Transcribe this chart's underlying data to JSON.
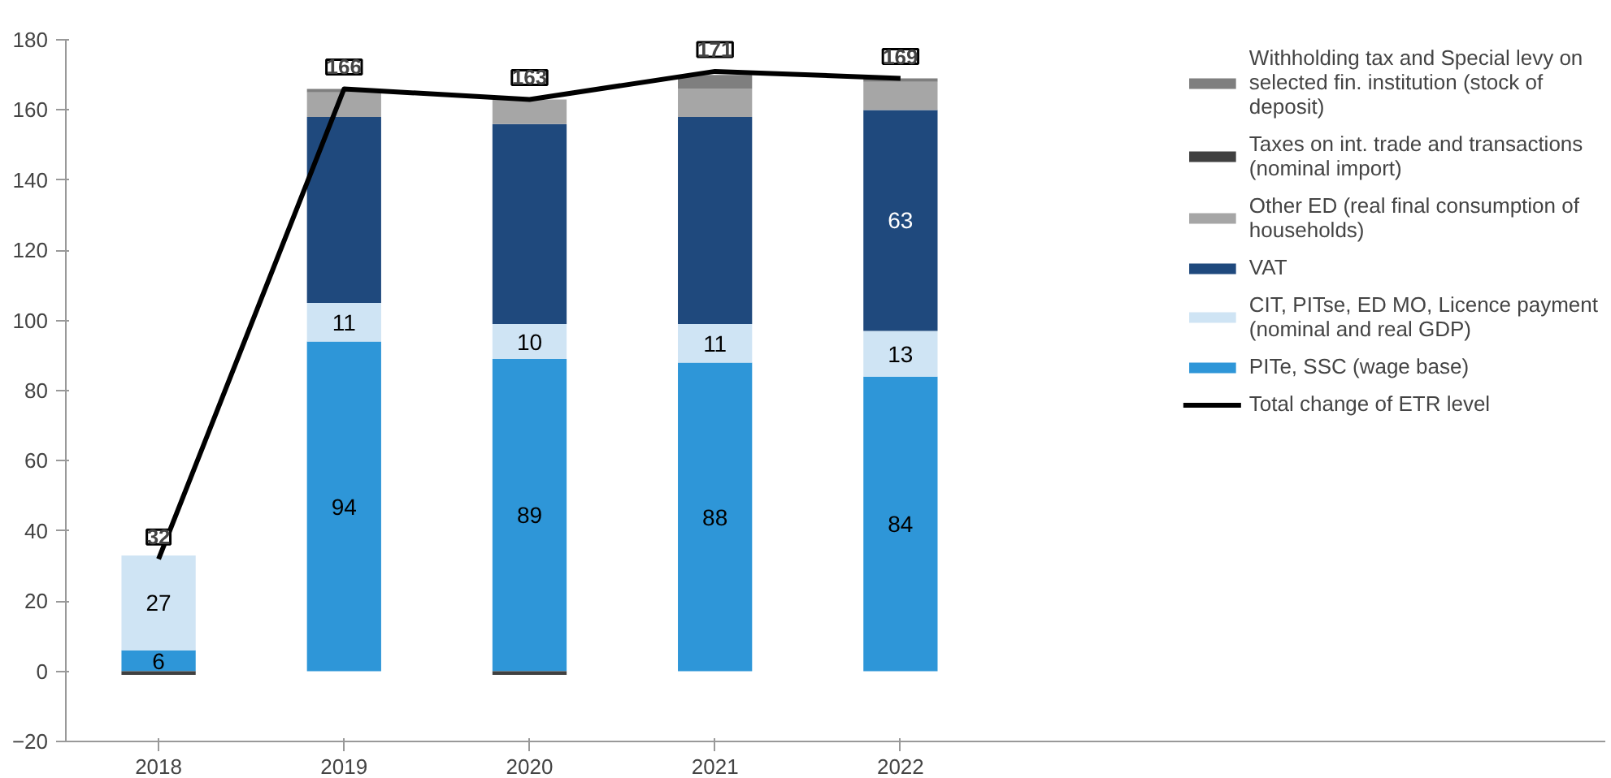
{
  "chart_data": {
    "type": "bar",
    "stacked": true,
    "categories": [
      "2018",
      "2019",
      "2020",
      "2021",
      "2022"
    ],
    "ylim": [
      -20,
      180
    ],
    "yticks": [
      -20,
      0,
      20,
      40,
      60,
      80,
      100,
      120,
      140,
      160,
      180
    ],
    "grid": false,
    "legend": "right",
    "series": [
      {
        "name": "PITe, SSC (wage base)",
        "color": "#2e96d8",
        "values": [
          6,
          94,
          89,
          88,
          84
        ],
        "value_labels": [
          "6",
          "94",
          "89",
          "88",
          "84"
        ]
      },
      {
        "name": "CIT, PITse, ED MO, Licence payment (nominal and real GDP)",
        "color": "#cfe4f4",
        "values": [
          27,
          11,
          10,
          11,
          13
        ],
        "value_labels": [
          "27",
          "11",
          "10",
          "11",
          "13"
        ]
      },
      {
        "name": "VAT",
        "color": "#1f497d",
        "values": [
          0,
          53,
          57,
          59,
          63
        ],
        "value_labels": [
          null,
          null,
          null,
          null,
          "63"
        ]
      },
      {
        "name": "Other ED (real final consumption of households)",
        "color": "#a6a6a6",
        "values": [
          0,
          7,
          7,
          8,
          8
        ]
      },
      {
        "name": "Taxes on int. trade and transactions (nominal import)",
        "color": "#404040",
        "values": [
          -1,
          0,
          -1,
          0,
          0
        ]
      },
      {
        "name": "Withholding tax and Special levy on selected fin. institution (stock of deposit)",
        "color": "#7f7f7f",
        "values": [
          0,
          1,
          0,
          4,
          1
        ]
      },
      {
        "name": "Total change of ETR level",
        "type": "line",
        "color": "#000000",
        "values": [
          32,
          166,
          163,
          171,
          169
        ],
        "value_labels": [
          "32",
          "166",
          "163",
          "171",
          "169"
        ]
      }
    ]
  }
}
